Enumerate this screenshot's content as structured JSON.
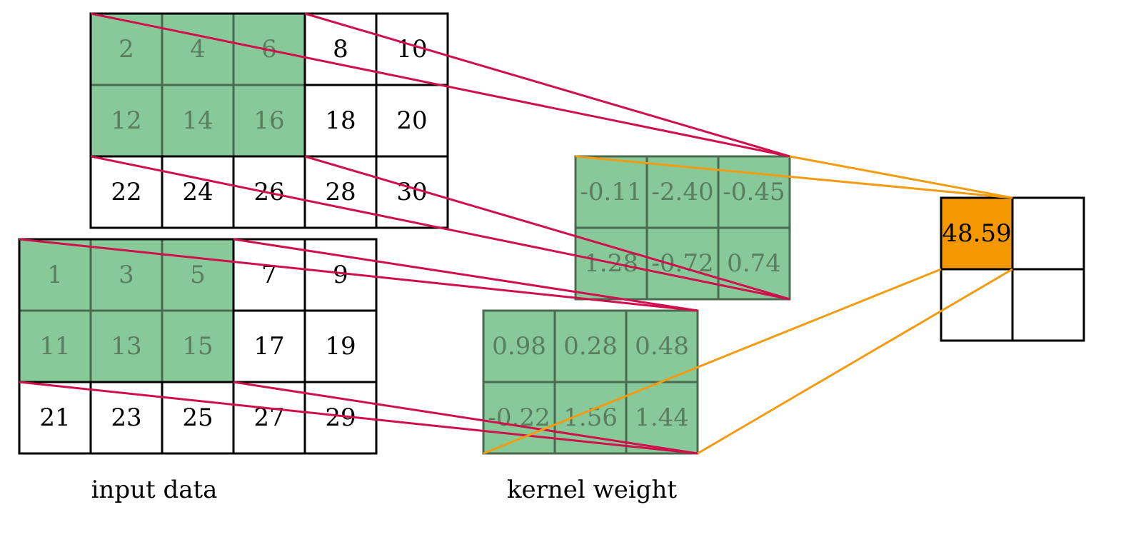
{
  "colors": {
    "highlight_fill": "#88c999",
    "highlight_text": "#5a7d5e",
    "highlight_border": "#4a6a50",
    "plain_fill": "#ffffff",
    "plain_text": "#000000",
    "grid_border": "#000000",
    "red_line": "#d0104c",
    "orange_line": "#f39c12",
    "output_fill": "#f39800"
  },
  "input_top": {
    "rows": [
      [
        "2",
        "4",
        "6",
        "8",
        "10"
      ],
      [
        "12",
        "14",
        "16",
        "18",
        "20"
      ],
      [
        "22",
        "24",
        "26",
        "28",
        "30"
      ]
    ],
    "highlight_rows": 2,
    "highlight_cols": 3
  },
  "input_bottom": {
    "rows": [
      [
        "1",
        "3",
        "5",
        "7",
        "9"
      ],
      [
        "11",
        "13",
        "15",
        "17",
        "19"
      ],
      [
        "21",
        "23",
        "25",
        "27",
        "29"
      ]
    ],
    "highlight_rows": 2,
    "highlight_cols": 3
  },
  "kernel_top": {
    "rows": [
      [
        "-0.11",
        "-2.40",
        "-0.45"
      ],
      [
        "1.28",
        "-0.72",
        "0.74"
      ]
    ]
  },
  "kernel_bottom": {
    "rows": [
      [
        "0.98",
        "0.28",
        "0.48"
      ],
      [
        "-0.22",
        "1.56",
        "1.44"
      ]
    ]
  },
  "output": {
    "rows": [
      [
        "48.59",
        ""
      ],
      [
        "",
        ""
      ]
    ]
  },
  "captions": {
    "input": "input data",
    "kernel": "kernel weight"
  }
}
